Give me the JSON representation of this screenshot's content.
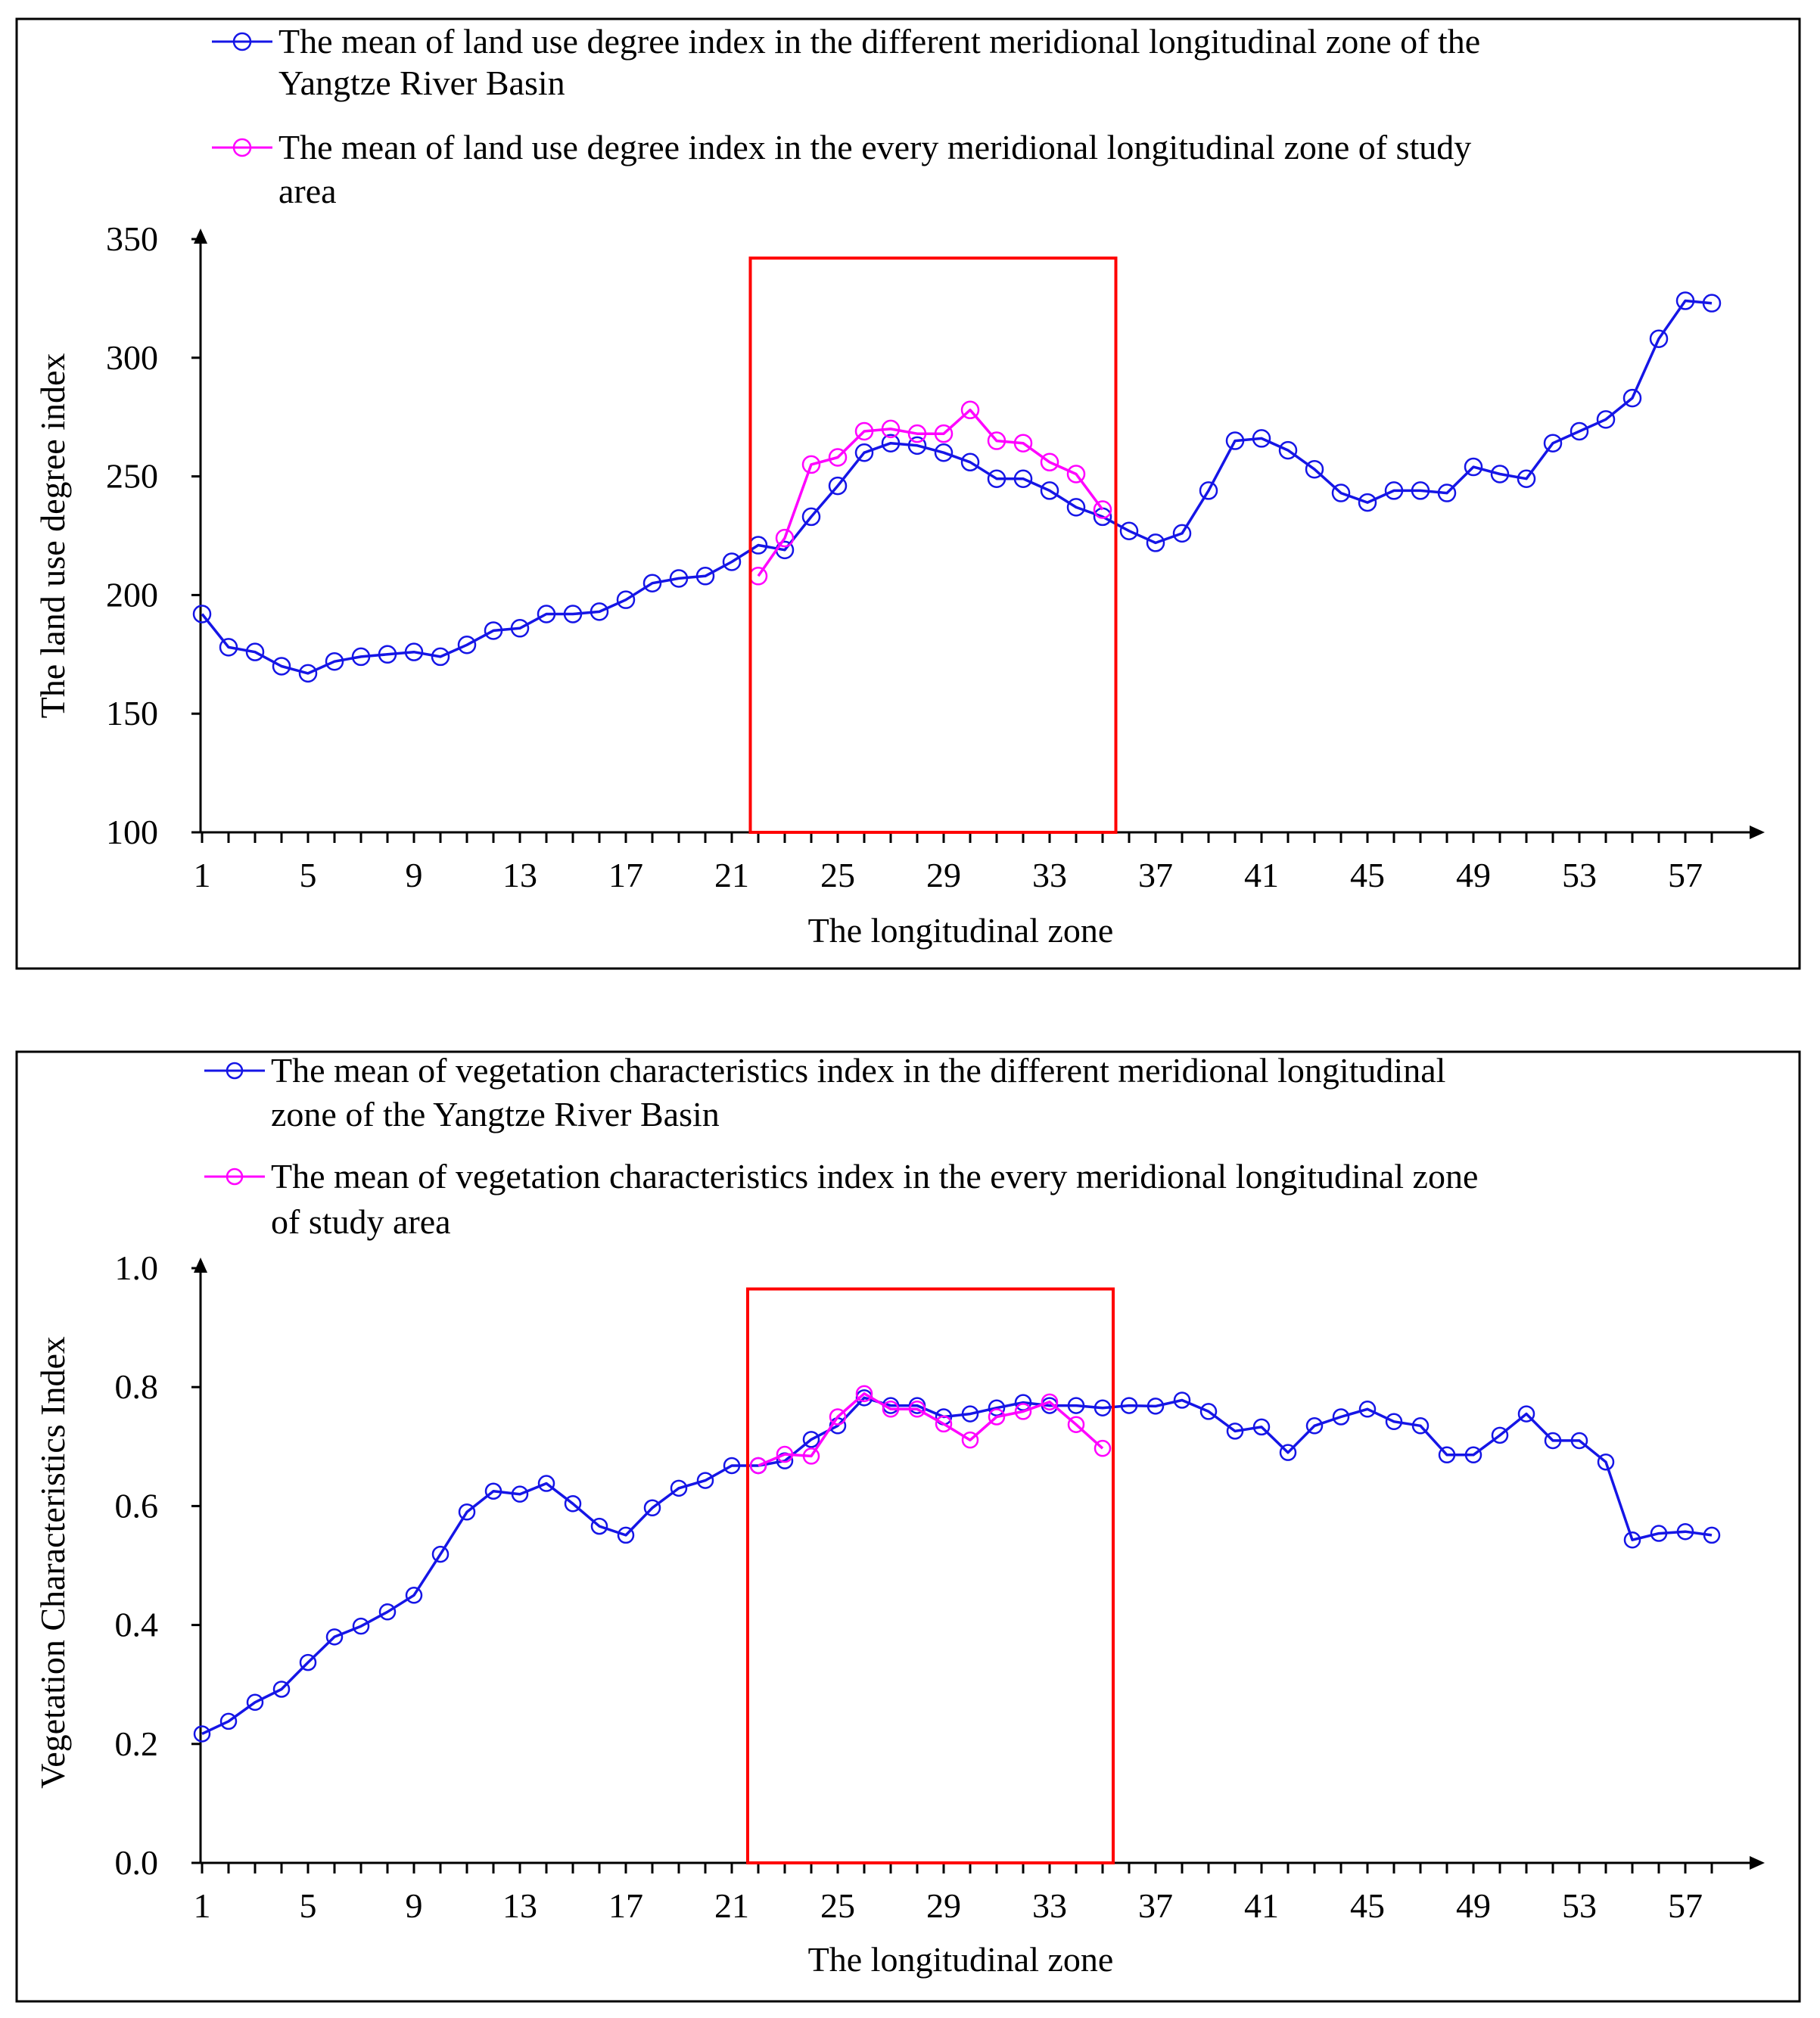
{
  "chart_data": [
    {
      "type": "line",
      "xlabel": "The longitudinal  zone",
      "ylabel": "The land use degree index",
      "ylim": [
        100,
        350
      ],
      "yticks": [
        "100",
        "150",
        "200",
        "250",
        "300",
        "350"
      ],
      "ytick_values": [
        100,
        150,
        200,
        250,
        300,
        350
      ],
      "xlim": [
        1,
        58
      ],
      "xticks": [
        "1",
        "5",
        "9",
        "13",
        "17",
        "21",
        "25",
        "29",
        "33",
        "37",
        "41",
        "45",
        "49",
        "53",
        "57"
      ],
      "xtick_values": [
        1,
        5,
        9,
        13,
        17,
        21,
        25,
        29,
        33,
        37,
        41,
        45,
        49,
        53,
        57
      ],
      "highlight_box": {
        "x_from": 21.7,
        "x_to": 35.5,
        "y_from": 100,
        "y_to": 342
      },
      "legend": [
        {
          "line1": "The mean of land use degree index in the different meridional longitudinal zone of the",
          "line2": "Yangtze River Basin"
        },
        {
          "line1": "The mean of land use degree index in the every meridional longitudinal zone of study",
          "line2": "area"
        }
      ],
      "series": [
        {
          "name": "The mean of land use degree index in the different meridional longitudinal zone of the Yangtze River Basin",
          "color": "#1515e6",
          "x": [
            1,
            2,
            3,
            4,
            5,
            6,
            7,
            8,
            9,
            10,
            11,
            12,
            13,
            14,
            15,
            16,
            17,
            18,
            19,
            20,
            21,
            22,
            23,
            24,
            25,
            26,
            27,
            28,
            29,
            30,
            31,
            32,
            33,
            34,
            35,
            36,
            37,
            38,
            39,
            40,
            41,
            42,
            43,
            44,
            45,
            46,
            47,
            48,
            49,
            50,
            51,
            52,
            53,
            54,
            55,
            56,
            57,
            58
          ],
          "values": [
            192,
            178,
            176,
            170,
            167,
            172,
            174,
            175,
            176,
            174,
            179,
            185,
            186,
            192,
            192,
            193,
            198,
            205,
            207,
            208,
            214,
            221,
            219,
            233,
            246,
            260,
            264,
            263,
            260,
            256,
            249,
            249,
            244,
            237,
            233,
            227,
            222,
            226,
            244,
            265,
            266,
            261,
            253,
            243,
            239,
            244,
            244,
            243,
            254,
            251,
            249,
            264,
            269,
            274,
            283,
            308,
            324,
            323
          ]
        },
        {
          "name": "The mean of land use degree index in the every meridional longitudinal zone of study area",
          "color": "#ff00ff",
          "x": [
            22,
            23,
            24,
            25,
            26,
            27,
            28,
            29,
            30,
            31,
            32,
            33,
            34,
            35
          ],
          "values": [
            208,
            224,
            255,
            258,
            269,
            270,
            268,
            268,
            278,
            265,
            264,
            256,
            251,
            236
          ]
        }
      ]
    },
    {
      "type": "line",
      "xlabel": "The longitudinal  zone",
      "ylabel": "Vegetation Characteristics  Index",
      "ylim": [
        0.0,
        1.0
      ],
      "yticks": [
        "0.0",
        "0.2",
        "0.4",
        "0.6",
        "0.8",
        "1.0"
      ],
      "ytick_values": [
        0.0,
        0.2,
        0.4,
        0.6,
        0.8,
        1.0
      ],
      "xlim": [
        1,
        58
      ],
      "xticks": [
        "1",
        "5",
        "9",
        "13",
        "17",
        "21",
        "25",
        "29",
        "33",
        "37",
        "41",
        "45",
        "49",
        "53",
        "57"
      ],
      "xtick_values": [
        1,
        5,
        9,
        13,
        17,
        21,
        25,
        29,
        33,
        37,
        41,
        45,
        49,
        53,
        57
      ],
      "highlight_box": {
        "x_from": 21.6,
        "x_to": 35.4,
        "y_from": 0.0,
        "y_to": 0.965
      },
      "legend": [
        {
          "line1": "The mean of vegetation characteristics index in the different meridional longitudinal",
          "line2": "zone of the Yangtze River Basin"
        },
        {
          "line1": "The mean of vegetation characteristics index in the every meridional longitudinal zone",
          "line2": "of study area"
        }
      ],
      "series": [
        {
          "name": "The mean of vegetation characteristics index in the different meridional longitudinal zone of the Yangtze River Basin",
          "color": "#1515e6",
          "x": [
            1,
            2,
            3,
            4,
            5,
            6,
            7,
            8,
            9,
            10,
            11,
            12,
            13,
            14,
            15,
            16,
            17,
            18,
            19,
            20,
            21,
            22,
            23,
            24,
            25,
            26,
            27,
            28,
            29,
            30,
            31,
            32,
            33,
            34,
            35,
            36,
            37,
            38,
            39,
            40,
            41,
            42,
            43,
            44,
            45,
            46,
            47,
            48,
            49,
            50,
            51,
            52,
            53,
            54,
            55,
            56,
            57,
            58
          ],
          "values": [
            0.217,
            0.238,
            0.27,
            0.292,
            0.337,
            0.38,
            0.398,
            0.422,
            0.45,
            0.519,
            0.59,
            0.625,
            0.62,
            0.638,
            0.604,
            0.566,
            0.551,
            0.597,
            0.63,
            0.643,
            0.668,
            0.668,
            0.676,
            0.712,
            0.735,
            0.782,
            0.769,
            0.769,
            0.75,
            0.755,
            0.765,
            0.774,
            0.769,
            0.769,
            0.765,
            0.769,
            0.768,
            0.778,
            0.759,
            0.726,
            0.733,
            0.69,
            0.735,
            0.75,
            0.763,
            0.742,
            0.735,
            0.686,
            0.686,
            0.719,
            0.755,
            0.71,
            0.71,
            0.674,
            0.543,
            0.554,
            0.557,
            0.551
          ]
        },
        {
          "name": "The mean of vegetation characteristics index in the every meridional longitudinal zone of study area",
          "color": "#ff00ff",
          "x": [
            22,
            23,
            24,
            25,
            26,
            27,
            28,
            29,
            30,
            31,
            32,
            33,
            34,
            35
          ],
          "values": [
            0.668,
            0.687,
            0.684,
            0.75,
            0.789,
            0.763,
            0.763,
            0.738,
            0.711,
            0.75,
            0.759,
            0.775,
            0.737,
            0.697
          ]
        }
      ]
    }
  ]
}
